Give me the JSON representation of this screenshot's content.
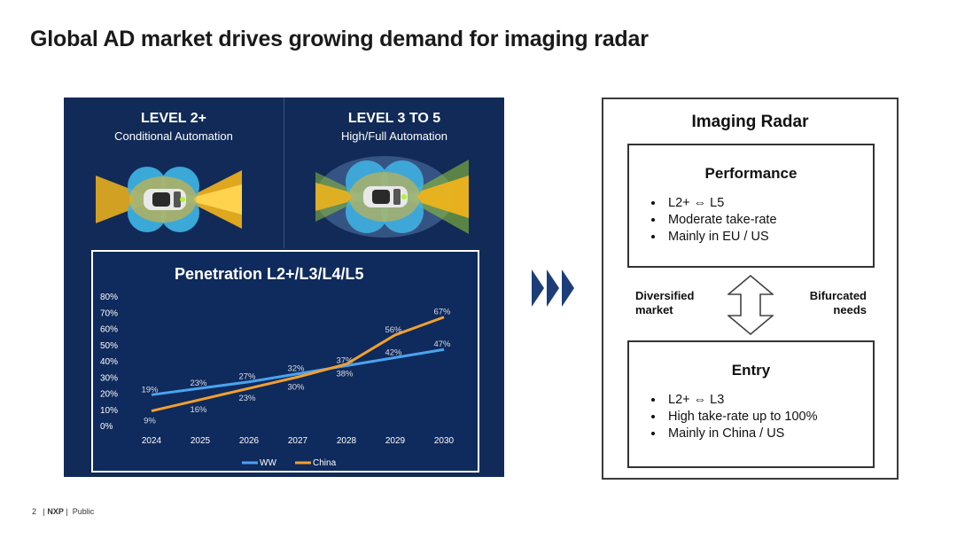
{
  "slide": {
    "title": "Global AD market drives growing demand for imaging radar"
  },
  "left_panel": {
    "level_a": {
      "title": "LEVEL 2+",
      "subtitle": "Conditional Automation"
    },
    "level_b": {
      "title": "LEVEL 3 TO 5",
      "subtitle": "High/Full Automation"
    }
  },
  "chart_data": {
    "type": "line",
    "title": "Penetration L2+/L3/L4/L5",
    "categories": [
      "2024",
      "2025",
      "2026",
      "2027",
      "2028",
      "2029",
      "2030"
    ],
    "ylim": [
      0,
      80
    ],
    "yticks": [
      "0%",
      "10%",
      "20%",
      "30%",
      "40%",
      "50%",
      "60%",
      "70%",
      "80%"
    ],
    "grid": false,
    "legend_position": "bottom",
    "series": [
      {
        "name": "WW",
        "color": "#4aa3f0",
        "values": [
          19,
          23,
          27,
          32,
          37,
          42,
          47
        ],
        "labels": [
          "19%",
          "23%",
          "27%",
          "32%",
          "37%",
          "42%",
          "47%"
        ]
      },
      {
        "name": "China",
        "color": "#f0a030",
        "values": [
          9,
          16,
          23,
          30,
          38,
          56,
          67
        ],
        "labels": [
          "9%",
          "16%",
          "23%",
          "30%",
          "38%",
          "56%",
          "67%"
        ]
      }
    ]
  },
  "right_panel": {
    "title": "Imaging Radar",
    "performance": {
      "title": "Performance",
      "bullets": [
        "L2+ ⇔ L5",
        "Moderate take-rate",
        "Mainly in EU / US"
      ]
    },
    "entry": {
      "title": "Entry",
      "bullets": [
        "L2+ ⇔ L3",
        "High take-rate up to 100%",
        "Mainly in China / US"
      ]
    },
    "left_label": [
      "Diversified",
      "market"
    ],
    "right_label": [
      "Bifurcated",
      "needs"
    ]
  },
  "footer": {
    "page": "2",
    "brand": "NXP",
    "classification": "Public"
  }
}
